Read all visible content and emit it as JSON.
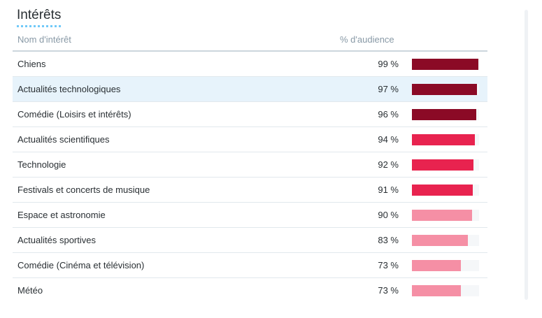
{
  "section": {
    "title": "Intérêts"
  },
  "table": {
    "columns": {
      "name": "Nom d'intérêt",
      "audience": "% d'audience"
    },
    "rows": [
      {
        "name": "Chiens",
        "percent": 99,
        "percent_label": "99 %",
        "color": "#8b0a26",
        "highlighted": false
      },
      {
        "name": "Actualités technologiques",
        "percent": 97,
        "percent_label": "97 %",
        "color": "#8b0a26",
        "highlighted": true
      },
      {
        "name": "Comédie (Loisirs et intérêts)",
        "percent": 96,
        "percent_label": "96 %",
        "color": "#8b0a26",
        "highlighted": false
      },
      {
        "name": "Actualités scientifiques",
        "percent": 94,
        "percent_label": "94 %",
        "color": "#e8234f",
        "highlighted": false
      },
      {
        "name": "Technologie",
        "percent": 92,
        "percent_label": "92 %",
        "color": "#e8234f",
        "highlighted": false
      },
      {
        "name": "Festivals et concerts de musique",
        "percent": 91,
        "percent_label": "91 %",
        "color": "#e8234f",
        "highlighted": false
      },
      {
        "name": "Espace et astronomie",
        "percent": 90,
        "percent_label": "90 %",
        "color": "#f58fa5",
        "highlighted": false
      },
      {
        "name": "Actualités sportives",
        "percent": 83,
        "percent_label": "83 %",
        "color": "#f58fa5",
        "highlighted": false
      },
      {
        "name": "Comédie (Cinéma et télévision)",
        "percent": 73,
        "percent_label": "73 %",
        "color": "#f58fa5",
        "highlighted": false
      },
      {
        "name": "Météo",
        "percent": 73,
        "percent_label": "73 %",
        "color": "#f58fa5",
        "highlighted": false
      }
    ]
  },
  "colors": {
    "bar_dark": "#8b0a26",
    "bar_crimson": "#e8234f",
    "bar_pink": "#f58fa5",
    "bar_track": "#f5f7f9",
    "row_highlight": "#e7f3fb",
    "header_text": "#8899a6",
    "title_underline": "#71c9f8"
  }
}
